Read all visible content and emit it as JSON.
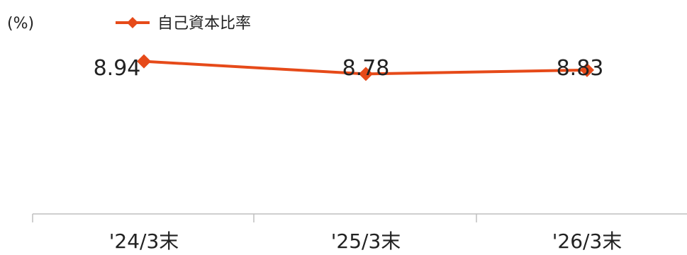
{
  "chart_data": {
    "type": "line",
    "unit_label": "(%)",
    "categories": [
      "'24/3末",
      "'25/3末",
      "'26/3末"
    ],
    "series": [
      {
        "name": "自己資本比率",
        "values": [
          8.94,
          8.78,
          8.83
        ],
        "color": "#e64a19"
      }
    ],
    "data_labels": [
      "8.94",
      "8.78",
      "8.83"
    ],
    "ylim": [
      7.0,
      9.0
    ],
    "grid": false,
    "legend_position": "top-left",
    "marker": "diamond"
  }
}
